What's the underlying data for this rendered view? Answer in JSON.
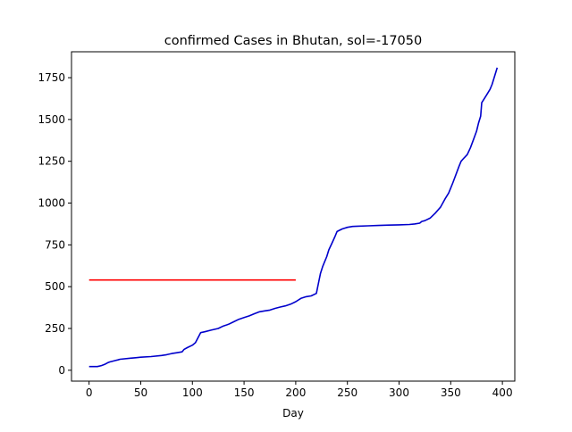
{
  "chart_data": {
    "type": "line",
    "title": "confirmed Cases in Bhutan, sol=-17050",
    "xlabel": "Day",
    "ylabel": "",
    "xlim": [
      -17,
      412
    ],
    "ylim": [
      -65,
      1905
    ],
    "xticks": [
      0,
      50,
      100,
      150,
      200,
      250,
      300,
      350,
      400
    ],
    "yticks": [
      0,
      250,
      500,
      750,
      1000,
      1250,
      1500,
      1750
    ],
    "grid": false,
    "series": [
      {
        "color": "#0000cc",
        "x": [
          0,
          8,
          12,
          15,
          18,
          20,
          25,
          28,
          30,
          40,
          45,
          50,
          60,
          70,
          75,
          80,
          85,
          90,
          92,
          95,
          100,
          103,
          105,
          108,
          112,
          118,
          125,
          130,
          135,
          140,
          145,
          150,
          155,
          160,
          165,
          170,
          175,
          180,
          185,
          190,
          195,
          200,
          205,
          210,
          215,
          220,
          222,
          224,
          226,
          228,
          230,
          232,
          235,
          238,
          240,
          245,
          250,
          255,
          260,
          270,
          280,
          290,
          300,
          310,
          315,
          320,
          322,
          325,
          330,
          335,
          340,
          345,
          348,
          350,
          352,
          355,
          358,
          360,
          363,
          366,
          369,
          372,
          375,
          377,
          379,
          380,
          382,
          385,
          388,
          390,
          392,
          394,
          395
        ],
        "y": [
          22,
          22,
          28,
          35,
          45,
          50,
          58,
          62,
          66,
          72,
          75,
          78,
          82,
          88,
          93,
          100,
          105,
          110,
          125,
          135,
          150,
          165,
          190,
          225,
          230,
          240,
          250,
          265,
          275,
          290,
          305,
          315,
          325,
          338,
          350,
          355,
          360,
          370,
          378,
          385,
          395,
          410,
          430,
          440,
          445,
          460,
          520,
          580,
          620,
          650,
          680,
          720,
          760,
          800,
          830,
          845,
          855,
          860,
          862,
          864,
          866,
          868,
          870,
          872,
          875,
          880,
          890,
          895,
          910,
          940,
          975,
          1030,
          1060,
          1090,
          1120,
          1170,
          1220,
          1250,
          1270,
          1290,
          1330,
          1380,
          1430,
          1480,
          1520,
          1600,
          1620,
          1650,
          1680,
          1710,
          1750,
          1790,
          1810
        ]
      },
      {
        "color": "#ff0000",
        "x": [
          0,
          200
        ],
        "y": [
          540,
          540
        ]
      }
    ]
  }
}
